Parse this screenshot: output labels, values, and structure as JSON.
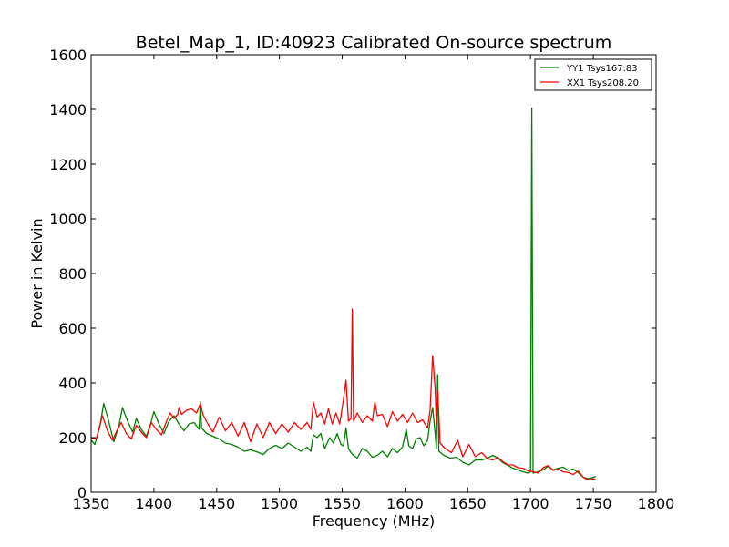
{
  "chart_data": {
    "type": "line",
    "title": "Betel_Map_1, ID:40923 Calibrated On-source spectrum",
    "xlabel": "Frequency (MHz)",
    "ylabel": "Power in Kelvin",
    "xlim": [
      1350,
      1800
    ],
    "ylim": [
      0,
      1600
    ],
    "xticks": [
      "1350",
      "1400",
      "1450",
      "1500",
      "1550",
      "1600",
      "1650",
      "1700",
      "1750",
      "1800"
    ],
    "yticks": [
      "0",
      "200",
      "400",
      "600",
      "800",
      "1000",
      "1200",
      "1400",
      "1600"
    ],
    "grid": false,
    "legend_position": "top-right",
    "series": [
      {
        "name": "YY1 Tsys167.83",
        "color": "#008000",
        "points": [
          [
            1350,
            190
          ],
          [
            1353,
            175
          ],
          [
            1357,
            240
          ],
          [
            1360,
            325
          ],
          [
            1364,
            260
          ],
          [
            1368,
            185
          ],
          [
            1372,
            240
          ],
          [
            1375,
            310
          ],
          [
            1379,
            260
          ],
          [
            1383,
            220
          ],
          [
            1386,
            270
          ],
          [
            1390,
            230
          ],
          [
            1394,
            205
          ],
          [
            1397,
            245
          ],
          [
            1400,
            295
          ],
          [
            1404,
            250
          ],
          [
            1408,
            215
          ],
          [
            1412,
            260
          ],
          [
            1416,
            280
          ],
          [
            1420,
            250
          ],
          [
            1424,
            225
          ],
          [
            1428,
            250
          ],
          [
            1432,
            255
          ],
          [
            1436,
            230
          ],
          [
            1437,
            330
          ],
          [
            1438,
            235
          ],
          [
            1442,
            215
          ],
          [
            1447,
            205
          ],
          [
            1452,
            195
          ],
          [
            1457,
            180
          ],
          [
            1462,
            175
          ],
          [
            1467,
            165
          ],
          [
            1472,
            150
          ],
          [
            1477,
            155
          ],
          [
            1482,
            148
          ],
          [
            1487,
            138
          ],
          [
            1492,
            160
          ],
          [
            1497,
            172
          ],
          [
            1502,
            160
          ],
          [
            1507,
            180
          ],
          [
            1512,
            165
          ],
          [
            1517,
            150
          ],
          [
            1522,
            165
          ],
          [
            1525,
            150
          ],
          [
            1527,
            210
          ],
          [
            1530,
            200
          ],
          [
            1533,
            215
          ],
          [
            1536,
            160
          ],
          [
            1540,
            200
          ],
          [
            1543,
            180
          ],
          [
            1546,
            215
          ],
          [
            1549,
            175
          ],
          [
            1551,
            170
          ],
          [
            1553,
            235
          ],
          [
            1555,
            160
          ],
          [
            1557,
            145
          ],
          [
            1559,
            135
          ],
          [
            1562,
            125
          ],
          [
            1566,
            160
          ],
          [
            1570,
            150
          ],
          [
            1574,
            128
          ],
          [
            1578,
            135
          ],
          [
            1582,
            150
          ],
          [
            1586,
            130
          ],
          [
            1590,
            160
          ],
          [
            1594,
            145
          ],
          [
            1598,
            165
          ],
          [
            1601,
            230
          ],
          [
            1603,
            170
          ],
          [
            1606,
            160
          ],
          [
            1609,
            195
          ],
          [
            1612,
            200
          ],
          [
            1615,
            170
          ],
          [
            1618,
            190
          ],
          [
            1620,
            260
          ],
          [
            1622,
            310
          ],
          [
            1624,
            215
          ],
          [
            1625,
            160
          ],
          [
            1626,
            430
          ],
          [
            1627,
            150
          ],
          [
            1631,
            135
          ],
          [
            1636,
            125
          ],
          [
            1641,
            128
          ],
          [
            1646,
            110
          ],
          [
            1651,
            100
          ],
          [
            1656,
            118
          ],
          [
            1661,
            118
          ],
          [
            1666,
            125
          ],
          [
            1670,
            135
          ],
          [
            1674,
            125
          ],
          [
            1678,
            108
          ],
          [
            1682,
            98
          ],
          [
            1686,
            88
          ],
          [
            1690,
            82
          ],
          [
            1694,
            75
          ],
          [
            1698,
            70
          ],
          [
            1700,
            75
          ],
          [
            1701,
            1405
          ],
          [
            1702,
            70
          ],
          [
            1706,
            75
          ],
          [
            1710,
            82
          ],
          [
            1714,
            95
          ],
          [
            1718,
            82
          ],
          [
            1722,
            88
          ],
          [
            1726,
            92
          ],
          [
            1730,
            80
          ],
          [
            1734,
            85
          ],
          [
            1738,
            72
          ],
          [
            1742,
            55
          ],
          [
            1746,
            50
          ],
          [
            1750,
            55
          ],
          [
            1752,
            58
          ]
        ]
      },
      {
        "name": "XX1 Tsys208.20",
        "color": "#ff0000",
        "points": [
          [
            1350,
            200
          ],
          [
            1354,
            195
          ],
          [
            1359,
            280
          ],
          [
            1363,
            225
          ],
          [
            1367,
            190
          ],
          [
            1371,
            230
          ],
          [
            1374,
            255
          ],
          [
            1378,
            215
          ],
          [
            1382,
            195
          ],
          [
            1386,
            245
          ],
          [
            1390,
            220
          ],
          [
            1394,
            200
          ],
          [
            1398,
            255
          ],
          [
            1402,
            230
          ],
          [
            1406,
            210
          ],
          [
            1410,
            260
          ],
          [
            1413,
            290
          ],
          [
            1416,
            270
          ],
          [
            1419,
            285
          ],
          [
            1420,
            310
          ],
          [
            1422,
            285
          ],
          [
            1426,
            300
          ],
          [
            1430,
            305
          ],
          [
            1434,
            290
          ],
          [
            1437,
            325
          ],
          [
            1439,
            285
          ],
          [
            1443,
            250
          ],
          [
            1447,
            220
          ],
          [
            1452,
            275
          ],
          [
            1457,
            225
          ],
          [
            1462,
            255
          ],
          [
            1467,
            205
          ],
          [
            1472,
            255
          ],
          [
            1477,
            185
          ],
          [
            1482,
            250
          ],
          [
            1487,
            200
          ],
          [
            1492,
            255
          ],
          [
            1497,
            215
          ],
          [
            1502,
            250
          ],
          [
            1507,
            220
          ],
          [
            1512,
            255
          ],
          [
            1517,
            230
          ],
          [
            1522,
            255
          ],
          [
            1525,
            230
          ],
          [
            1527,
            330
          ],
          [
            1530,
            275
          ],
          [
            1533,
            290
          ],
          [
            1536,
            250
          ],
          [
            1539,
            305
          ],
          [
            1542,
            250
          ],
          [
            1545,
            290
          ],
          [
            1548,
            250
          ],
          [
            1551,
            340
          ],
          [
            1553,
            410
          ],
          [
            1555,
            260
          ],
          [
            1557,
            270
          ],
          [
            1558,
            670
          ],
          [
            1559,
            260
          ],
          [
            1562,
            290
          ],
          [
            1566,
            255
          ],
          [
            1570,
            280
          ],
          [
            1574,
            260
          ],
          [
            1576,
            330
          ],
          [
            1578,
            280
          ],
          [
            1582,
            285
          ],
          [
            1586,
            240
          ],
          [
            1590,
            295
          ],
          [
            1594,
            260
          ],
          [
            1598,
            285
          ],
          [
            1602,
            255
          ],
          [
            1606,
            290
          ],
          [
            1610,
            255
          ],
          [
            1614,
            265
          ],
          [
            1618,
            235
          ],
          [
            1620,
            300
          ],
          [
            1622,
            500
          ],
          [
            1624,
            380
          ],
          [
            1625,
            250
          ],
          [
            1626,
            370
          ],
          [
            1628,
            180
          ],
          [
            1632,
            160
          ],
          [
            1637,
            145
          ],
          [
            1642,
            190
          ],
          [
            1646,
            130
          ],
          [
            1651,
            175
          ],
          [
            1656,
            130
          ],
          [
            1661,
            145
          ],
          [
            1666,
            122
          ],
          [
            1670,
            118
          ],
          [
            1674,
            128
          ],
          [
            1678,
            112
          ],
          [
            1682,
            100
          ],
          [
            1686,
            100
          ],
          [
            1690,
            90
          ],
          [
            1694,
            88
          ],
          [
            1698,
            78
          ],
          [
            1702,
            75
          ],
          [
            1706,
            70
          ],
          [
            1710,
            90
          ],
          [
            1714,
            98
          ],
          [
            1718,
            80
          ],
          [
            1722,
            85
          ],
          [
            1726,
            75
          ],
          [
            1730,
            72
          ],
          [
            1734,
            65
          ],
          [
            1738,
            78
          ],
          [
            1742,
            55
          ],
          [
            1746,
            45
          ],
          [
            1750,
            50
          ],
          [
            1752,
            45
          ]
        ]
      }
    ]
  }
}
